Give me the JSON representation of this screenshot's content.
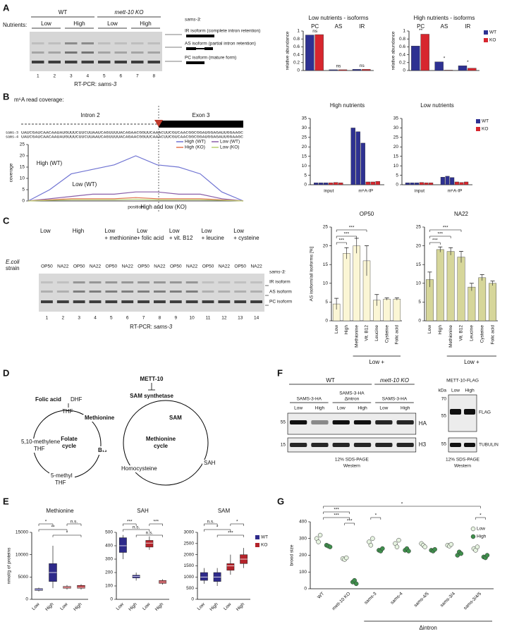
{
  "figure_labels": [
    "A",
    "B",
    "C",
    "D",
    "E",
    "F",
    "G"
  ],
  "panel_a": {
    "genotypes": [
      "WT",
      "mett-10 KO"
    ],
    "nutrients_label": "Nutrients:",
    "nutrients": [
      "Low",
      "High",
      "Low",
      "High"
    ],
    "lanes": [
      "1",
      "2",
      "3",
      "4",
      "5",
      "6",
      "7",
      "8"
    ],
    "caption_prefix": "RT-PCR:",
    "caption_gene": "sams-3",
    "gene": "sams-3:",
    "isoforms": [
      "IR isoform (complete intron retention)",
      "AS isoform (partial intron retention)",
      "PC isoform (mature form)"
    ]
  },
  "panel_b": {
    "title": "m⁶A read coverage:",
    "intron": "Intron 2",
    "exon": "Exon 3",
    "seq_names": [
      "sams-3",
      "sams-4"
    ],
    "sequences": [
      "UAUCGAUCAACAAUAUGUUUCUUCUUAAUCAGUUUUACAGAACGGUUCAAACUUCGUCAACGGCGGAUGGAGAUUGGAAGC",
      "UAUCGAUCAACAAUAUGUUUCUUCUUAAUCAGUUUUACAGAACGGUUCAAACUUCGUCAACGGCGGAUGGAGAUUGGAAGC"
    ]
  },
  "panel_c": {
    "strain_label": [
      "E.coli",
      "strain"
    ],
    "conditions": [
      [
        "Low"
      ],
      [
        "High"
      ],
      [
        "Low",
        "+ methionine"
      ],
      [
        "Low",
        "+ folic acid"
      ],
      [
        "Low",
        "+ vit. B12"
      ],
      [
        "Low",
        "+ leucine"
      ],
      [
        "Low",
        "+ cysteine"
      ]
    ],
    "strains": [
      "OP50",
      "NA22",
      "OP50",
      "NA22",
      "OP50",
      "NA22",
      "OP50",
      "NA22",
      "OP50",
      "NA22",
      "OP50",
      "NA22",
      "OP50",
      "NA22"
    ],
    "lanes": [
      "1",
      "2",
      "3",
      "4",
      "5",
      "6",
      "7",
      "8",
      "9",
      "10",
      "11",
      "12",
      "13",
      "14"
    ],
    "caption_prefix": "RT-PCR:",
    "caption_gene": "sams-3",
    "gene": "sams-3:",
    "isoforms": [
      "IR isoform",
      "AS isoform",
      "PC isoform"
    ]
  },
  "panel_d": {
    "enzyme": "METT-10",
    "synthetase": "SAM synthetase",
    "folic_acid": "Folic acid",
    "dhf": "DHF",
    "thf": "THF",
    "methionine": "Methionine",
    "sam": "SAM",
    "methylene_thf": [
      "5,10-methylene",
      "THF"
    ],
    "folate_cycle": [
      "Folate",
      "cycle"
    ],
    "b12": "B₁₂",
    "methionine_cycle": [
      "Methionine",
      "cycle"
    ],
    "methyl_thf": [
      "5-methyl",
      "THF"
    ],
    "homocysteine": "Homocysteine",
    "sah": "SAH"
  },
  "panel_f": {
    "wt": "WT",
    "ko": "mett-10 KO",
    "constructs": [
      [
        "SAMS-3-HA"
      ],
      [
        "SAMS-3-HA",
        "Δintron"
      ],
      [
        "SAMS-3-HA"
      ]
    ],
    "nutrients": [
      "Low",
      "High",
      "Low",
      "High",
      "Low",
      "High"
    ],
    "markers": [
      "55",
      "15"
    ],
    "antibodies": [
      "HA",
      "H3"
    ],
    "method": [
      "12% SDS-PAGE",
      "Western"
    ],
    "flag_title": "METT-10-FLAG",
    "kda": "kDa",
    "flag_markers": [
      "70",
      "55",
      "55"
    ],
    "flag_nutrients": [
      "Low",
      "High"
    ],
    "flag_antibodies": [
      "FLAG",
      "TUBULIN"
    ],
    "flag_method": [
      "12% SDS-PAGE",
      "Western"
    ]
  },
  "chart_data": [
    {
      "type": "bar",
      "title": "Low nutrients - isoforms",
      "categories": [
        "PC",
        "AS",
        "IR"
      ],
      "ylabel": "relative abundance",
      "series": [
        {
          "name": "WT",
          "color": "#2e3192",
          "values": [
            0.9,
            0.02,
            0.03
          ]
        },
        {
          "name": "KO",
          "color": "#d7262e",
          "values": [
            0.91,
            0.02,
            0.03
          ]
        }
      ],
      "ylim": [
        0,
        1
      ],
      "yticks": [
        0,
        0.2,
        0.4,
        0.6,
        0.8,
        1
      ],
      "annotations": [
        "ns",
        "ns",
        "ns"
      ]
    },
    {
      "type": "bar",
      "title": "High nutrients - isoforms",
      "categories": [
        "PC",
        "AS",
        "IR"
      ],
      "ylabel": "relative abundance",
      "series": [
        {
          "name": "WT",
          "color": "#2e3192",
          "values": [
            0.62,
            0.22,
            0.12
          ]
        },
        {
          "name": "KO",
          "color": "#d7262e",
          "values": [
            0.92,
            0.01,
            0.06
          ]
        }
      ],
      "ylim": [
        0,
        1
      ],
      "yticks": [
        0,
        0.2,
        0.4,
        0.6,
        0.8,
        1
      ],
      "annotations": [
        "**",
        "*",
        "*"
      ],
      "legend": true
    },
    {
      "type": "line",
      "ylabel": "coverage",
      "xlabel": "position",
      "series": [
        {
          "name": "High (WT)",
          "color": "#6f73d2",
          "values": [
            0,
            5,
            12,
            14,
            16,
            20,
            16,
            15,
            12,
            4,
            0
          ]
        },
        {
          "name": "Low (WT)",
          "color": "#8a5ea8",
          "values": [
            0,
            1,
            2,
            3,
            3,
            4,
            4,
            3,
            3,
            1,
            0
          ]
        },
        {
          "name": "High (KO)",
          "color": "#e4734f",
          "values": [
            0,
            0.5,
            1,
            1,
            1,
            1.5,
            1,
            1,
            1,
            0.5,
            0
          ]
        },
        {
          "name": "Low (KO)",
          "color": "#b9cf72",
          "values": [
            0,
            0.3,
            0.5,
            0.5,
            0.5,
            0.8,
            0.5,
            0.5,
            0.5,
            0.3,
            0
          ]
        }
      ],
      "ylim": [
        0,
        25
      ],
      "yticks": [
        0,
        5,
        10,
        15,
        20,
        25
      ],
      "annotations": [
        "High (WT)",
        "Low (WT)",
        "High and low (KO)"
      ],
      "legend": true
    },
    {
      "type": "bar",
      "title": "High nutrients",
      "categories": [
        "input",
        "m⁶A-IP"
      ],
      "series": [
        {
          "name": "WT",
          "color": "#2e3192",
          "values": [
            [
              1,
              1,
              1
            ],
            [
              30,
              28,
              22
            ]
          ]
        },
        {
          "name": "KO",
          "color": "#d7262e",
          "values": [
            [
              1,
              1.2,
              1
            ],
            [
              1.5,
              1.5,
              1.8
            ]
          ]
        }
      ],
      "ylim": [
        0,
        35
      ],
      "yticks": [
        0,
        5,
        10,
        15,
        20,
        25,
        30,
        35
      ]
    },
    {
      "type": "bar",
      "title": "Low nutrients",
      "categories": [
        "input",
        "m⁶A-IP"
      ],
      "series": [
        {
          "name": "WT",
          "color": "#2e3192",
          "values": [
            [
              1,
              1,
              1
            ],
            [
              4,
              4.5,
              3.8
            ]
          ]
        },
        {
          "name": "KO",
          "color": "#d7262e",
          "values": [
            [
              1.2,
              1,
              1
            ],
            [
              1.5,
              1.2,
              1.5
            ]
          ]
        }
      ],
      "ylim": [
        0,
        35
      ],
      "yticks": [
        0,
        5,
        10,
        15,
        20,
        25,
        30,
        35
      ],
      "legend": true
    },
    {
      "type": "bar",
      "title": "OP50",
      "categories": [
        "Low",
        "High",
        "Methionine",
        "Vit. B12",
        "Leucine",
        "Cysteine",
        "Folic acid"
      ],
      "values": [
        4.5,
        18,
        20,
        16,
        5.5,
        5.8,
        5.8
      ],
      "errors": [
        1.5,
        1.5,
        2,
        4,
        1.5,
        0.3,
        0.3
      ],
      "color": "#fbf6d5",
      "ylim": [
        0,
        25
      ],
      "yticks": [
        0,
        5,
        10,
        15,
        20,
        25
      ],
      "ylabel": "AS isoform/all isoforms [%]",
      "group_label": "Low +",
      "significance": [
        "***",
        "***",
        "***"
      ]
    },
    {
      "type": "bar",
      "title": "NA22",
      "categories": [
        "Low",
        "High",
        "Methionine",
        "Vit. B12",
        "Leucine",
        "Cysteine",
        "Folic acid"
      ],
      "values": [
        11,
        19,
        18.5,
        17,
        9,
        11.5,
        10
      ],
      "errors": [
        2,
        0.7,
        1,
        1.5,
        1,
        0.8,
        0.6
      ],
      "color": "#d6d69a",
      "ylim": [
        0,
        25
      ],
      "yticks": [
        0,
        5,
        10,
        15,
        20,
        25
      ],
      "group_label": "Low +",
      "significance": [
        "***",
        "***",
        "***"
      ]
    },
    {
      "type": "box",
      "title": "Methionine",
      "ylabel": "nmol/g of proteins",
      "categories": [
        "Low",
        "High"
      ],
      "series": [
        {
          "name": "WT",
          "color": "#2e2a8a",
          "values": [
            {
              "min": 1800,
              "q1": 2000,
              "median": 2200,
              "q3": 2400,
              "max": 2600
            },
            {
              "min": 2500,
              "q1": 4000,
              "median": 6000,
              "q3": 8000,
              "max": 12000
            }
          ]
        },
        {
          "name": "KO",
          "color": "#b3232a",
          "values": [
            {
              "min": 2200,
              "q1": 2500,
              "median": 2700,
              "q3": 2900,
              "max": 3200
            },
            {
              "min": 2200,
              "q1": 2500,
              "median": 2700,
              "q3": 3100,
              "max": 3400
            }
          ]
        }
      ],
      "ylim": [
        0,
        15000
      ],
      "yticks": [
        0,
        5000,
        10000,
        15000
      ],
      "significance": [
        "*",
        "n.s.",
        "**",
        "*"
      ]
    },
    {
      "type": "box",
      "title": "SAH",
      "categories": [
        "Low",
        "High"
      ],
      "series": [
        {
          "name": "WT",
          "color": "#2e2a8a",
          "values": [
            {
              "min": 300,
              "q1": 350,
              "median": 400,
              "q3": 460,
              "max": 480
            },
            {
              "min": 140,
              "q1": 160,
              "median": 170,
              "q3": 180,
              "max": 200
            }
          ]
        },
        {
          "name": "KO",
          "color": "#b3232a",
          "values": [
            {
              "min": 370,
              "q1": 390,
              "median": 420,
              "q3": 440,
              "max": 470
            },
            {
              "min": 110,
              "q1": 120,
              "median": 130,
              "q3": 140,
              "max": 150
            }
          ]
        }
      ],
      "ylim": [
        0,
        500
      ],
      "yticks": [
        0,
        100,
        200,
        300,
        400,
        500
      ],
      "significance": [
        "***",
        "***",
        "n.s.",
        "n.s."
      ]
    },
    {
      "type": "box",
      "title": "SAM",
      "categories": [
        "Low",
        "High"
      ],
      "series": [
        {
          "name": "WT",
          "color": "#2e2a8a",
          "values": [
            {
              "min": 700,
              "q1": 850,
              "median": 1000,
              "q3": 1200,
              "max": 1400
            },
            {
              "min": 600,
              "q1": 800,
              "median": 1000,
              "q3": 1200,
              "max": 1400
            }
          ]
        },
        {
          "name": "KO",
          "color": "#b3232a",
          "values": [
            {
              "min": 1100,
              "q1": 1300,
              "median": 1500,
              "q3": 1600,
              "max": 2000
            },
            {
              "min": 1400,
              "q1": 1600,
              "median": 1800,
              "q3": 2000,
              "max": 2300
            }
          ]
        }
      ],
      "ylim": [
        0,
        3000
      ],
      "yticks": [
        0,
        500,
        1000,
        1500,
        2000,
        2500,
        3000
      ],
      "significance": [
        "n.s.",
        "*",
        "*",
        "***"
      ],
      "legend": true
    },
    {
      "type": "strip",
      "ylabel": "brood size",
      "categories": [
        "WT",
        "mett-10 KO",
        "sams-3",
        "sams-4",
        "sams-4/5",
        "sams-3/4",
        "sams-3/4/5"
      ],
      "series": [
        {
          "name": "Low",
          "color": "#e6f3e0",
          "values": [
            [
              300,
              280,
              320
            ],
            [
              180,
              175,
              185
            ],
            [
              280,
              260,
              300
            ],
            [
              270,
              250,
              290
            ],
            [
              270,
              260,
              250
            ],
            [
              260,
              255,
              265
            ],
            [
              240,
              230,
              250
            ]
          ]
        },
        {
          "name": "High",
          "color": "#3f8f4c",
          "values": [
            [
              260,
              255,
              250
            ],
            [
              40,
              50,
              30
            ],
            [
              230,
              225,
              240
            ],
            [
              230,
              240,
              225
            ],
            [
              230,
              225,
              235
            ],
            [
              200,
              220,
              210
            ],
            [
              190,
              185,
              200
            ]
          ]
        }
      ],
      "ylim": [
        0,
        400
      ],
      "yticks": [
        0,
        100,
        200,
        300,
        400
      ],
      "group_label": "Δintron",
      "significance": [
        "*",
        "***",
        "***",
        "***",
        "*",
        "*"
      ],
      "legend": true
    }
  ]
}
